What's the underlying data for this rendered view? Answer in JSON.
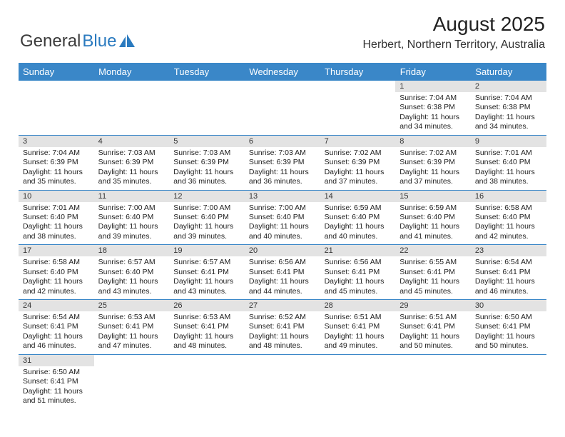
{
  "brand": {
    "word1": "General",
    "word2": "Blue"
  },
  "title": {
    "month_year": "August 2025",
    "location": "Herbert, Northern Territory, Australia"
  },
  "colors": {
    "header_bg": "#3a87c8",
    "daynum_bg": "#e3e3e3",
    "brand_blue": "#2a7abf"
  },
  "day_headers": [
    "Sunday",
    "Monday",
    "Tuesday",
    "Wednesday",
    "Thursday",
    "Friday",
    "Saturday"
  ],
  "weeks": [
    [
      null,
      null,
      null,
      null,
      null,
      {
        "n": "1",
        "sr": "Sunrise: 7:04 AM",
        "ss": "Sunset: 6:38 PM",
        "dl": "Daylight: 11 hours and 34 minutes."
      },
      {
        "n": "2",
        "sr": "Sunrise: 7:04 AM",
        "ss": "Sunset: 6:38 PM",
        "dl": "Daylight: 11 hours and 34 minutes."
      }
    ],
    [
      {
        "n": "3",
        "sr": "Sunrise: 7:04 AM",
        "ss": "Sunset: 6:39 PM",
        "dl": "Daylight: 11 hours and 35 minutes."
      },
      {
        "n": "4",
        "sr": "Sunrise: 7:03 AM",
        "ss": "Sunset: 6:39 PM",
        "dl": "Daylight: 11 hours and 35 minutes."
      },
      {
        "n": "5",
        "sr": "Sunrise: 7:03 AM",
        "ss": "Sunset: 6:39 PM",
        "dl": "Daylight: 11 hours and 36 minutes."
      },
      {
        "n": "6",
        "sr": "Sunrise: 7:03 AM",
        "ss": "Sunset: 6:39 PM",
        "dl": "Daylight: 11 hours and 36 minutes."
      },
      {
        "n": "7",
        "sr": "Sunrise: 7:02 AM",
        "ss": "Sunset: 6:39 PM",
        "dl": "Daylight: 11 hours and 37 minutes."
      },
      {
        "n": "8",
        "sr": "Sunrise: 7:02 AM",
        "ss": "Sunset: 6:39 PM",
        "dl": "Daylight: 11 hours and 37 minutes."
      },
      {
        "n": "9",
        "sr": "Sunrise: 7:01 AM",
        "ss": "Sunset: 6:40 PM",
        "dl": "Daylight: 11 hours and 38 minutes."
      }
    ],
    [
      {
        "n": "10",
        "sr": "Sunrise: 7:01 AM",
        "ss": "Sunset: 6:40 PM",
        "dl": "Daylight: 11 hours and 38 minutes."
      },
      {
        "n": "11",
        "sr": "Sunrise: 7:00 AM",
        "ss": "Sunset: 6:40 PM",
        "dl": "Daylight: 11 hours and 39 minutes."
      },
      {
        "n": "12",
        "sr": "Sunrise: 7:00 AM",
        "ss": "Sunset: 6:40 PM",
        "dl": "Daylight: 11 hours and 39 minutes."
      },
      {
        "n": "13",
        "sr": "Sunrise: 7:00 AM",
        "ss": "Sunset: 6:40 PM",
        "dl": "Daylight: 11 hours and 40 minutes."
      },
      {
        "n": "14",
        "sr": "Sunrise: 6:59 AM",
        "ss": "Sunset: 6:40 PM",
        "dl": "Daylight: 11 hours and 40 minutes."
      },
      {
        "n": "15",
        "sr": "Sunrise: 6:59 AM",
        "ss": "Sunset: 6:40 PM",
        "dl": "Daylight: 11 hours and 41 minutes."
      },
      {
        "n": "16",
        "sr": "Sunrise: 6:58 AM",
        "ss": "Sunset: 6:40 PM",
        "dl": "Daylight: 11 hours and 42 minutes."
      }
    ],
    [
      {
        "n": "17",
        "sr": "Sunrise: 6:58 AM",
        "ss": "Sunset: 6:40 PM",
        "dl": "Daylight: 11 hours and 42 minutes."
      },
      {
        "n": "18",
        "sr": "Sunrise: 6:57 AM",
        "ss": "Sunset: 6:40 PM",
        "dl": "Daylight: 11 hours and 43 minutes."
      },
      {
        "n": "19",
        "sr": "Sunrise: 6:57 AM",
        "ss": "Sunset: 6:41 PM",
        "dl": "Daylight: 11 hours and 43 minutes."
      },
      {
        "n": "20",
        "sr": "Sunrise: 6:56 AM",
        "ss": "Sunset: 6:41 PM",
        "dl": "Daylight: 11 hours and 44 minutes."
      },
      {
        "n": "21",
        "sr": "Sunrise: 6:56 AM",
        "ss": "Sunset: 6:41 PM",
        "dl": "Daylight: 11 hours and 45 minutes."
      },
      {
        "n": "22",
        "sr": "Sunrise: 6:55 AM",
        "ss": "Sunset: 6:41 PM",
        "dl": "Daylight: 11 hours and 45 minutes."
      },
      {
        "n": "23",
        "sr": "Sunrise: 6:54 AM",
        "ss": "Sunset: 6:41 PM",
        "dl": "Daylight: 11 hours and 46 minutes."
      }
    ],
    [
      {
        "n": "24",
        "sr": "Sunrise: 6:54 AM",
        "ss": "Sunset: 6:41 PM",
        "dl": "Daylight: 11 hours and 46 minutes."
      },
      {
        "n": "25",
        "sr": "Sunrise: 6:53 AM",
        "ss": "Sunset: 6:41 PM",
        "dl": "Daylight: 11 hours and 47 minutes."
      },
      {
        "n": "26",
        "sr": "Sunrise: 6:53 AM",
        "ss": "Sunset: 6:41 PM",
        "dl": "Daylight: 11 hours and 48 minutes."
      },
      {
        "n": "27",
        "sr": "Sunrise: 6:52 AM",
        "ss": "Sunset: 6:41 PM",
        "dl": "Daylight: 11 hours and 48 minutes."
      },
      {
        "n": "28",
        "sr": "Sunrise: 6:51 AM",
        "ss": "Sunset: 6:41 PM",
        "dl": "Daylight: 11 hours and 49 minutes."
      },
      {
        "n": "29",
        "sr": "Sunrise: 6:51 AM",
        "ss": "Sunset: 6:41 PM",
        "dl": "Daylight: 11 hours and 50 minutes."
      },
      {
        "n": "30",
        "sr": "Sunrise: 6:50 AM",
        "ss": "Sunset: 6:41 PM",
        "dl": "Daylight: 11 hours and 50 minutes."
      }
    ],
    [
      {
        "n": "31",
        "sr": "Sunrise: 6:50 AM",
        "ss": "Sunset: 6:41 PM",
        "dl": "Daylight: 11 hours and 51 minutes."
      },
      null,
      null,
      null,
      null,
      null,
      null
    ]
  ]
}
